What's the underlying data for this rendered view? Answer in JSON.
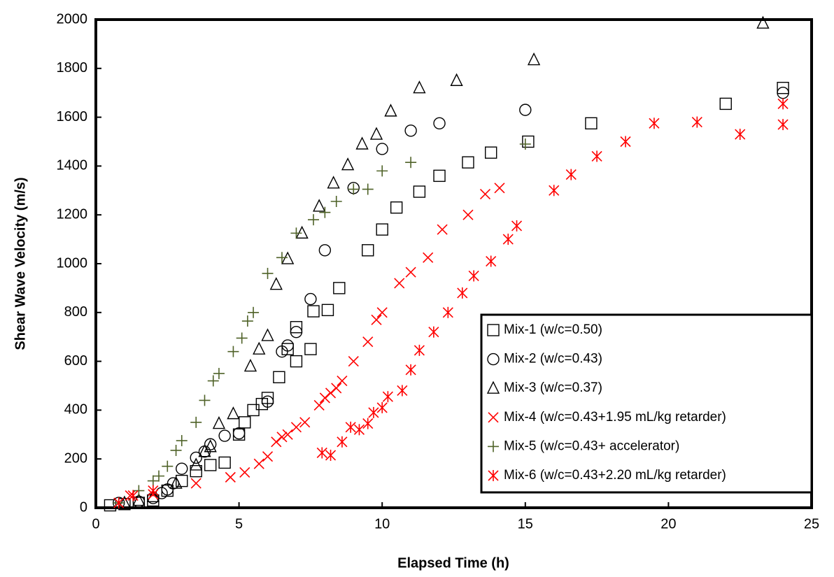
{
  "chart_data": {
    "type": "scatter",
    "xlabel": "Elapsed Time (h)",
    "ylabel": "Shear Wave Velocity (m/s)",
    "xlim": [
      0,
      25
    ],
    "xticks": [
      0,
      5,
      10,
      15,
      20,
      25
    ],
    "ylim": [
      0,
      2000
    ],
    "yticks": [
      0,
      200,
      400,
      600,
      800,
      1000,
      1200,
      1400,
      1600,
      1800,
      2000
    ],
    "grid": false,
    "legend": "lower right",
    "series": [
      {
        "name": "Mix-1 (w/c=0.50)",
        "color": "#000000",
        "marker": "square",
        "x": [
          0.5,
          1,
          1.5,
          2,
          2.5,
          3,
          3.5,
          4,
          4.5,
          5,
          5.2,
          5.5,
          5.8,
          6,
          6.4,
          6.7,
          7,
          7,
          7.5,
          7.6,
          8.1,
          8.5,
          9.5,
          10,
          10.5,
          11.3,
          12,
          13,
          13.8,
          15.1,
          17.3,
          22,
          24
        ],
        "values": [
          10,
          15,
          20,
          30,
          70,
          110,
          150,
          175,
          185,
          300,
          350,
          400,
          425,
          450,
          535,
          650,
          740,
          600,
          650,
          805,
          810,
          900,
          1055,
          1140,
          1230,
          1295,
          1360,
          1415,
          1455,
          1500,
          1575,
          1655,
          1720
        ]
      },
      {
        "name": "Mix-2 (w/c=0.43)",
        "color": "#000000",
        "marker": "circle",
        "x": [
          0.8,
          1.5,
          2,
          2.3,
          2.5,
          2.7,
          3,
          3.5,
          3.8,
          4,
          4.5,
          5,
          6,
          6.5,
          6.7,
          7,
          7.5,
          8,
          9,
          10,
          11,
          12,
          15,
          24
        ],
        "values": [
          20,
          25,
          40,
          60,
          75,
          100,
          160,
          205,
          230,
          260,
          295,
          305,
          435,
          640,
          665,
          720,
          855,
          1055,
          1310,
          1470,
          1545,
          1575,
          1630,
          1700
        ]
      },
      {
        "name": "Mix-3 (w/c=0.37)",
        "color": "#000000",
        "marker": "triangle",
        "x": [
          1,
          1.5,
          2,
          2.8,
          3.5,
          3.8,
          4,
          4.3,
          4.8,
          5.4,
          5.7,
          6,
          6.3,
          6.7,
          7.2,
          7.8,
          8.3,
          8.8,
          9.3,
          9.8,
          10.3,
          11.3,
          12.6,
          15.3,
          23.3
        ],
        "values": [
          20,
          30,
          45,
          100,
          175,
          230,
          250,
          345,
          385,
          580,
          650,
          705,
          915,
          1020,
          1125,
          1235,
          1330,
          1405,
          1490,
          1530,
          1625,
          1720,
          1750,
          1835,
          1985
        ]
      },
      {
        "name": "Mix-4 (w/c=0.43+1.95 mL/kg retarder)",
        "color": "#ff0000",
        "marker": "x",
        "x": [
          1.2,
          2,
          3.5,
          4.7,
          5.2,
          5.7,
          6,
          6.3,
          6.5,
          6.7,
          7,
          7.3,
          7.8,
          8,
          8.2,
          8.4,
          8.6,
          9,
          9.5,
          9.8,
          10,
          10.6,
          11,
          11.6,
          12.1,
          13,
          13.6,
          14.1
        ],
        "values": [
          50,
          55,
          100,
          125,
          145,
          180,
          210,
          270,
          290,
          300,
          330,
          350,
          420,
          450,
          470,
          490,
          520,
          600,
          680,
          770,
          800,
          920,
          965,
          1025,
          1140,
          1200,
          1285,
          1310
        ]
      },
      {
        "name": "Mix-5 (w/c=0.43+ accelerator)",
        "color": "#4f6228",
        "marker": "plus",
        "x": [
          0.8,
          1.5,
          2,
          2.2,
          2.5,
          2.8,
          3,
          3.5,
          3.8,
          4.1,
          4.3,
          4.8,
          5.1,
          5.3,
          5.5,
          6,
          6.5,
          7,
          7.6,
          8,
          8.4,
          9,
          9.5,
          10,
          11,
          15
        ],
        "values": [
          20,
          70,
          110,
          130,
          170,
          235,
          275,
          350,
          440,
          520,
          550,
          640,
          695,
          765,
          800,
          960,
          1025,
          1125,
          1180,
          1210,
          1255,
          1305,
          1305,
          1380,
          1415,
          1490
        ]
      },
      {
        "name": "Mix-6 (w/c=0.43+2.20 mL/kg retarder)",
        "color": "#ff0000",
        "marker": "asterisk",
        "x": [
          0.8,
          1.3,
          2,
          7.9,
          8.2,
          8.6,
          8.9,
          9.2,
          9.5,
          9.7,
          10,
          10.2,
          10.7,
          11,
          11.3,
          11.8,
          12.3,
          12.8,
          13.2,
          13.8,
          14.4,
          14.7,
          16,
          16.6,
          17.5,
          18.5,
          19.5,
          21,
          22.5,
          24,
          24
        ],
        "values": [
          20,
          50,
          70,
          225,
          215,
          270,
          330,
          320,
          345,
          390,
          410,
          455,
          480,
          565,
          645,
          720,
          800,
          880,
          950,
          1010,
          1100,
          1155,
          1300,
          1365,
          1440,
          1500,
          1575,
          1580,
          1530,
          1570,
          1655
        ]
      }
    ]
  }
}
